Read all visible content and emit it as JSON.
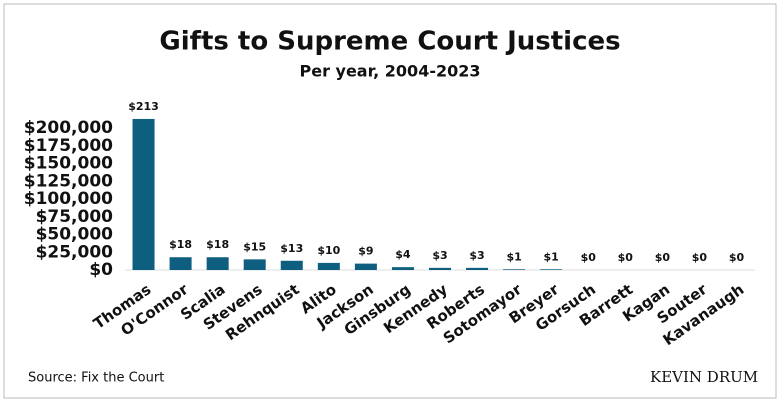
{
  "chart_data": {
    "type": "bar",
    "title": "Gifts to Supreme Court Justices",
    "subtitle": "Per year, 2004-2023",
    "source": "Source: Fix the Court",
    "watermark": "KEVIN DRUM",
    "categories": [
      "Thomas",
      "O'Connor",
      "Scalia",
      "Stevens",
      "Rehnquist",
      "Alito",
      "Jackson",
      "Ginsburg",
      "Kennedy",
      "Roberts",
      "Sotomayor",
      "Breyer",
      "Gorsuch",
      "Barrett",
      "Kagan",
      "Souter",
      "Kavanaugh"
    ],
    "values": [
      213000,
      18000,
      18000,
      15000,
      13000,
      10000,
      9000,
      4000,
      3000,
      3000,
      1000,
      1000,
      0,
      0,
      0,
      0,
      0
    ],
    "value_labels": [
      "$213",
      "$18",
      "$18",
      "$15",
      "$13",
      "$10",
      "$9",
      "$4",
      "$3",
      "$3",
      "$1",
      "$1",
      "$0",
      "$0",
      "$0",
      "$0",
      "$0"
    ],
    "color": "#0d5e7f",
    "ylim": [
      0,
      220000
    ],
    "yticks": [
      {
        "value": 0,
        "label": "$0"
      },
      {
        "value": 25000,
        "label": "$25,000"
      },
      {
        "value": 50000,
        "label": "$50,000"
      },
      {
        "value": 75000,
        "label": "$75,000"
      },
      {
        "value": 100000,
        "label": "$100,000"
      },
      {
        "value": 125000,
        "label": "$125,000"
      },
      {
        "value": 150000,
        "label": "$150,000"
      },
      {
        "value": 175000,
        "label": "$175,000"
      },
      {
        "value": 200000,
        "label": "$200,000"
      }
    ],
    "grid": false
  }
}
